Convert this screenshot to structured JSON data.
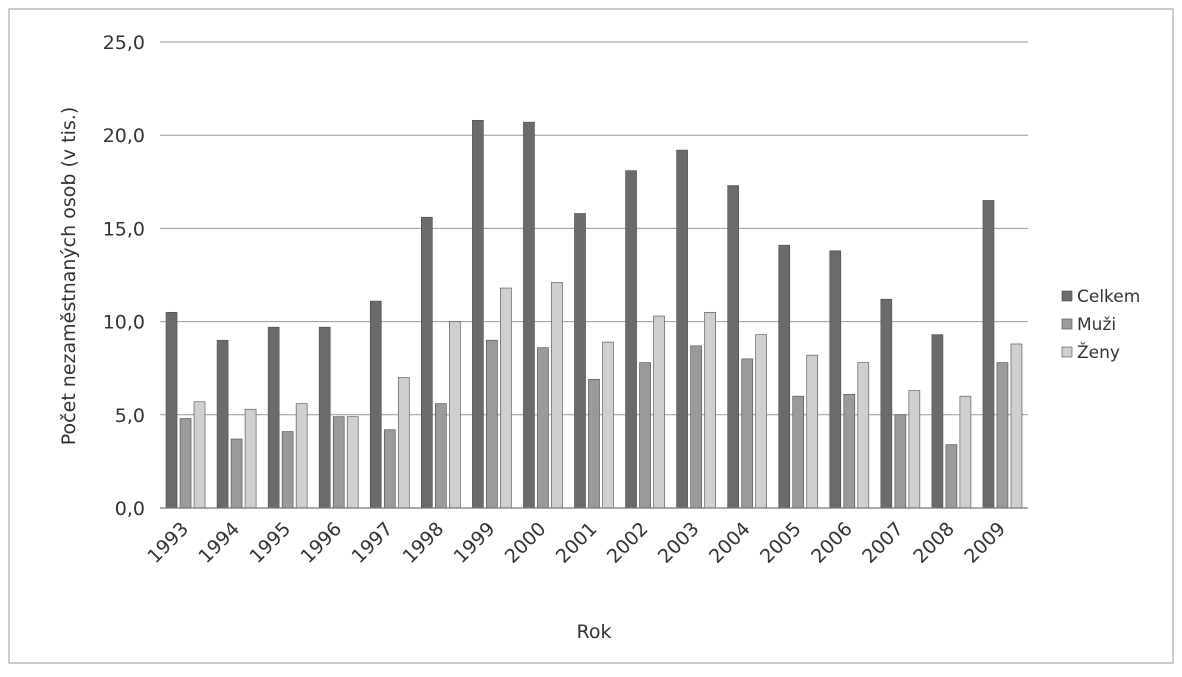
{
  "chart_data": {
    "type": "bar",
    "xlabel": "Rok",
    "ylabel": "Počet nezaměstnaných osob (v tis.)",
    "ylim": [
      0,
      25
    ],
    "y_ticks": [
      "0,0",
      "5,0",
      "10,0",
      "15,0",
      "20,0",
      "25,0"
    ],
    "grid": true,
    "legend_position": "right",
    "categories": [
      "1993",
      "1994",
      "1995",
      "1996",
      "1997",
      "1998",
      "1999",
      "2000",
      "2001",
      "2002",
      "2003",
      "2004",
      "2005",
      "2006",
      "2007",
      "2008",
      "2009"
    ],
    "series": [
      {
        "name": "Celkem",
        "color": "#6b6b6b",
        "values": [
          10.5,
          9.0,
          9.7,
          9.7,
          11.1,
          15.6,
          20.8,
          20.7,
          15.8,
          18.1,
          19.2,
          17.3,
          14.1,
          13.8,
          11.2,
          9.3,
          16.5
        ]
      },
      {
        "name": "Muži",
        "color": "#9a9a9a",
        "values": [
          4.8,
          3.7,
          4.1,
          4.9,
          4.2,
          5.6,
          9.0,
          8.6,
          6.9,
          7.8,
          8.7,
          8.0,
          6.0,
          6.1,
          5.0,
          3.4,
          7.8
        ]
      },
      {
        "name": "Ženy",
        "color": "#cfcfcf",
        "values": [
          5.7,
          5.3,
          5.6,
          4.9,
          7.0,
          10.0,
          11.8,
          12.1,
          8.9,
          10.3,
          10.5,
          9.3,
          8.2,
          7.8,
          6.3,
          6.0,
          8.8
        ]
      }
    ]
  }
}
